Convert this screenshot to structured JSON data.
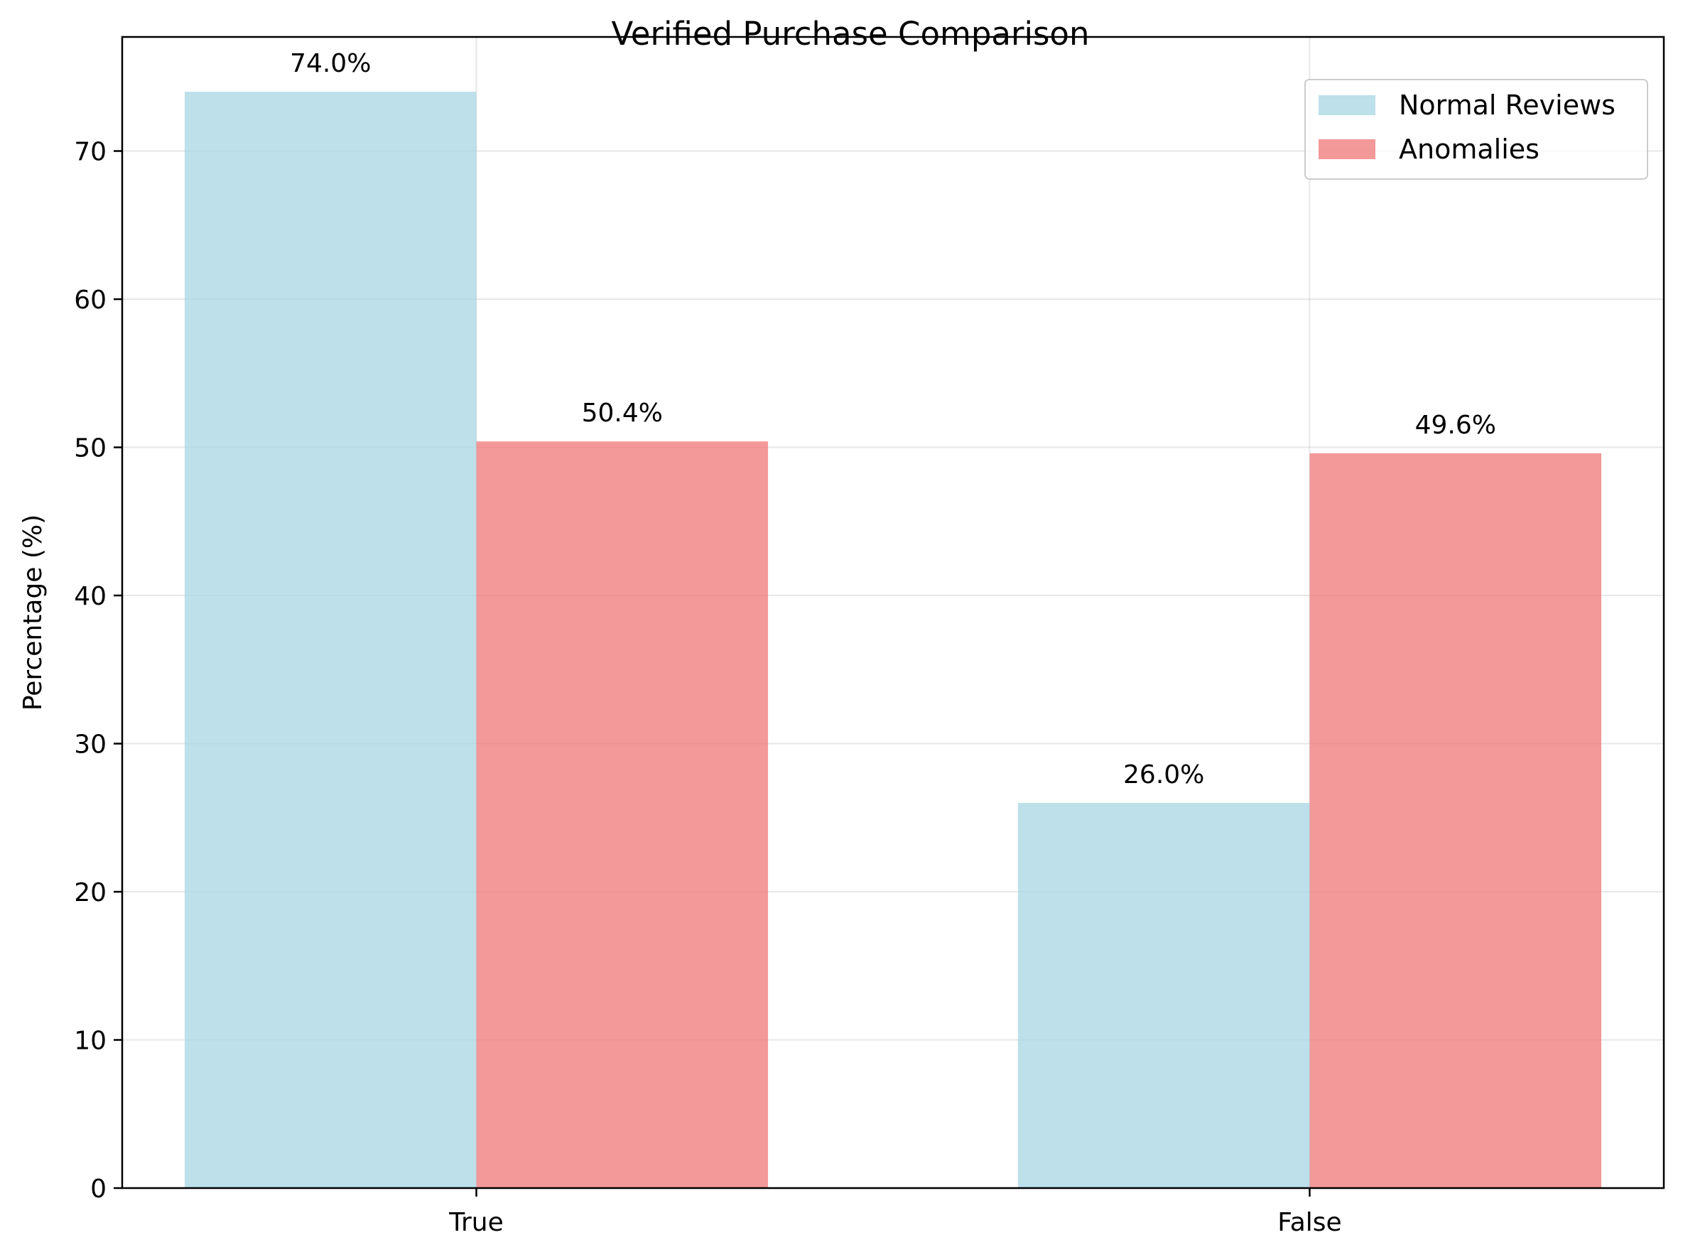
{
  "chart_data": {
    "type": "bar",
    "title": "Verified Purchase Comparison",
    "xlabel": "",
    "ylabel": "Percentage (%)",
    "categories": [
      "True",
      "False"
    ],
    "series": [
      {
        "name": "Normal Reviews",
        "values": [
          74.0,
          26.0
        ],
        "labels": [
          "74.0%",
          "26.0%"
        ],
        "color": "#add8e6"
      },
      {
        "name": "Anomalies",
        "values": [
          50.4,
          49.6
        ],
        "labels": [
          "50.4%",
          "49.6%"
        ],
        "color": "#f08080"
      }
    ],
    "yticks": [
      0,
      10,
      20,
      30,
      40,
      50,
      60,
      70
    ],
    "ytick_labels": [
      "0",
      "10",
      "20",
      "30",
      "40",
      "50",
      "60",
      "70"
    ],
    "ylim": [
      0,
      77.7
    ],
    "grid": true,
    "legend_position": "top-right"
  }
}
